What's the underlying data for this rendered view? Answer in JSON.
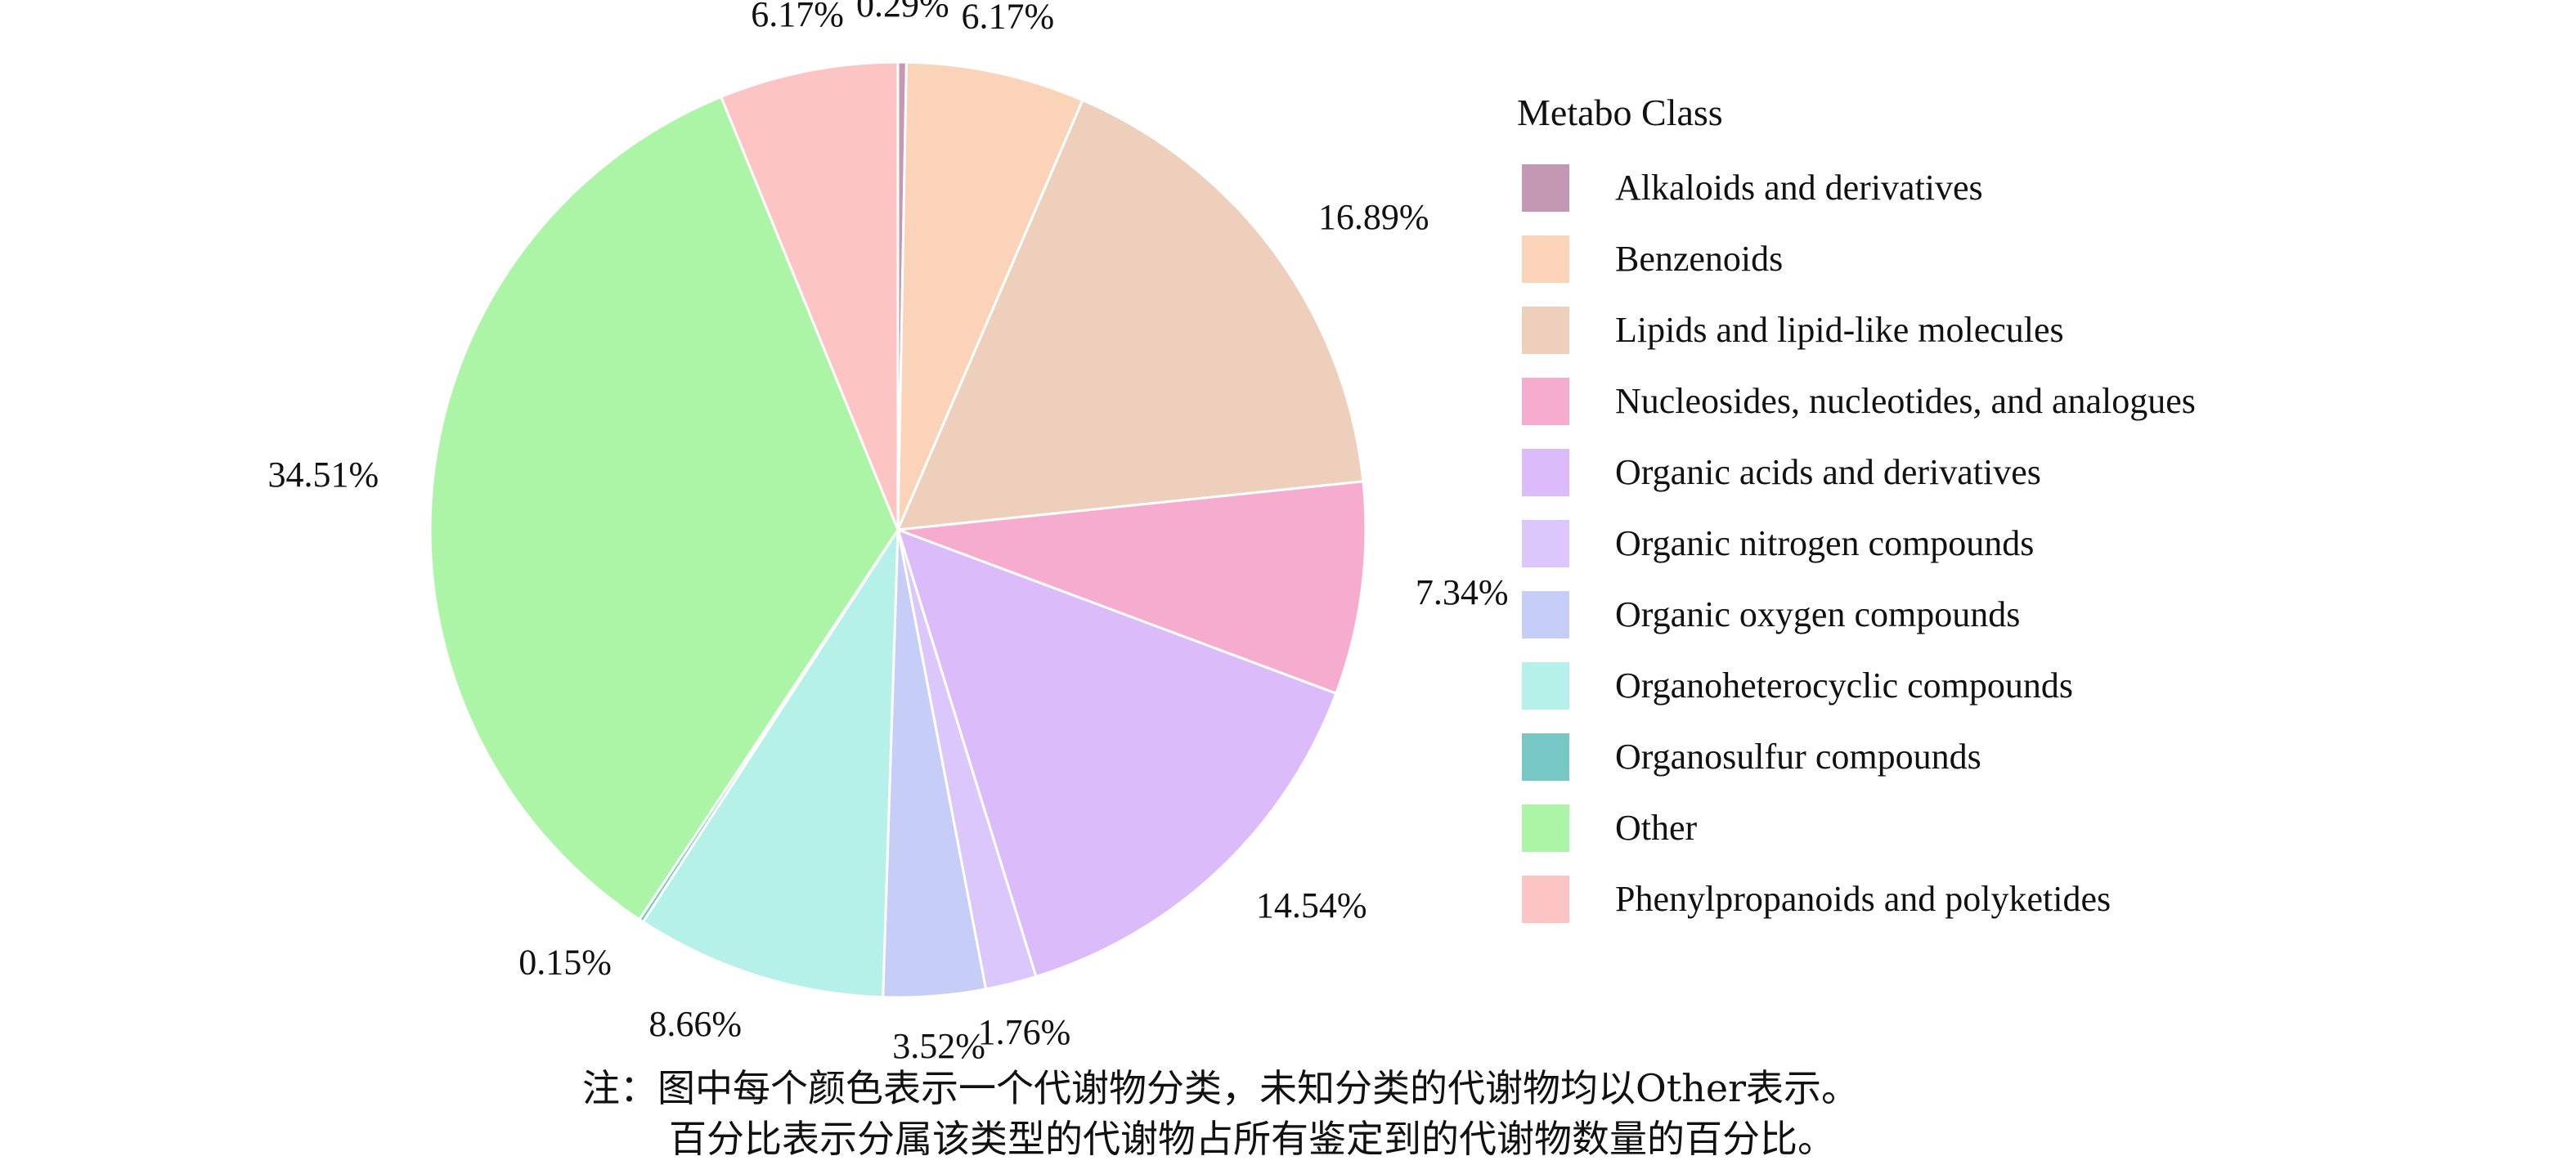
{
  "chart_data": {
    "type": "pie",
    "legend_title": "Metabo Class",
    "legend_position": "right",
    "categories": [
      "Alkaloids and derivatives",
      "Benzenoids",
      "Lipids and lipid-like molecules",
      "Nucleosides, nucleotides, and analogues",
      "Organic acids and derivatives",
      "Organic nitrogen compounds",
      "Organic oxygen compounds",
      "Organoheterocyclic compounds",
      "Organosulfur compounds",
      "Other",
      "Phenylpropanoids and polyketides"
    ],
    "values": [
      0.29,
      6.17,
      16.89,
      7.34,
      14.54,
      1.76,
      3.52,
      8.66,
      0.15,
      34.51,
      6.17
    ],
    "labels": [
      "0.29%",
      "6.17%",
      "16.89%",
      "7.34%",
      "14.54%",
      "1.76%",
      "3.52%",
      "8.66%",
      "0.15%",
      "34.51%",
      "6.17%"
    ],
    "colors": [
      "#c497b2",
      "#fbd3b8",
      "#eecfbc",
      "#f6accf",
      "#dcbbfb",
      "#dbc7fb",
      "#c6cdf7",
      "#b5f1e8",
      "#77c8c5",
      "#acf5a6",
      "#fcc5c4"
    ]
  },
  "note": {
    "line1": "注：图中每个颜色表示一个代谢物分类，未知分类的代谢物均以Other表示。",
    "line2": "百分比表示分属该类型的代谢物占所有鉴定到的代谢物数量的百分比。"
  }
}
